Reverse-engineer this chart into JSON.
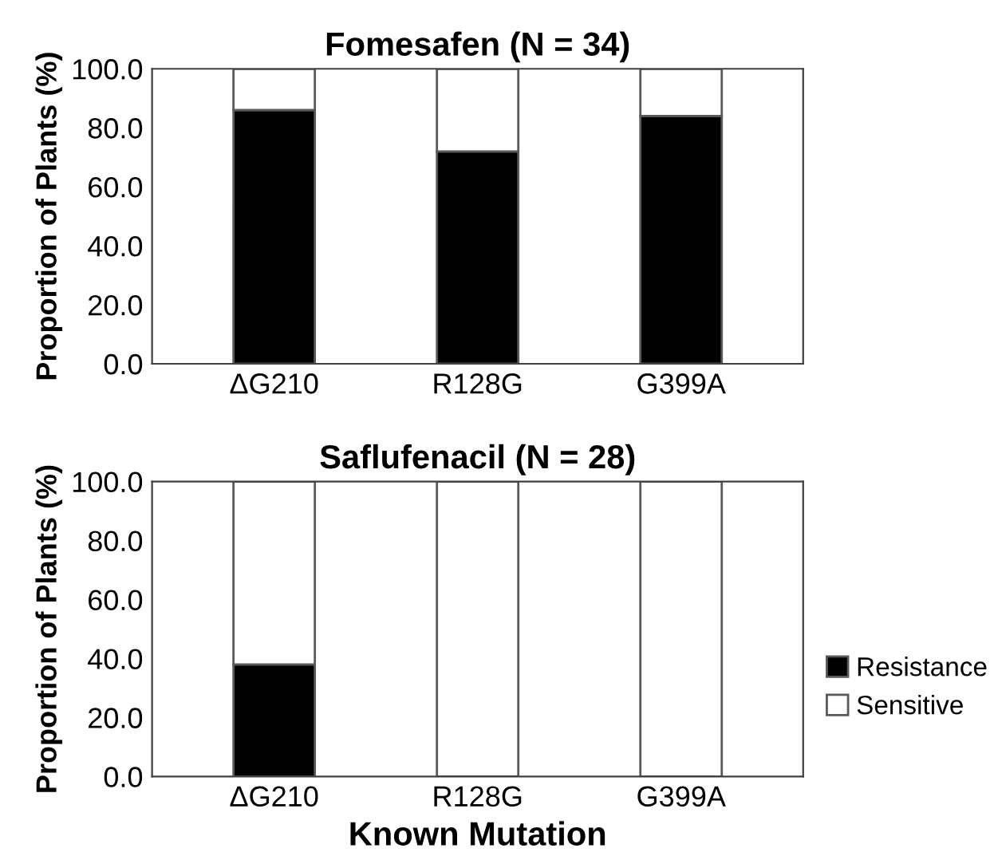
{
  "chart_data": [
    {
      "type": "bar",
      "title": "Fomesafen (N = 34)",
      "ylabel": "Proportion of Plants (%)",
      "categories": [
        "ΔG210",
        "R128G",
        "G399A"
      ],
      "stacked": true,
      "legend": false,
      "grid": false,
      "ylim": [
        0,
        100
      ],
      "yticks": [
        {
          "value": 0,
          "label": "0.0"
        },
        {
          "value": 20,
          "label": "20.0"
        },
        {
          "value": 40,
          "label": "40.0"
        },
        {
          "value": 60,
          "label": "60.0"
        },
        {
          "value": 80,
          "label": "80.0"
        },
        {
          "value": 100,
          "label": "100.0"
        }
      ],
      "series": [
        {
          "color": "#000000",
          "values": [
            86,
            72,
            84
          ]
        },
        {
          "color": "#ffffff",
          "values": [
            14,
            28,
            16
          ]
        }
      ]
    },
    {
      "type": "bar",
      "title": "Saflufenacil (N = 28)",
      "ylabel": "Proportion of Plants (%)",
      "xlabel": "Known Mutation",
      "categories": [
        "ΔG210",
        "R128G",
        "G399A"
      ],
      "stacked": true,
      "legend": "right",
      "grid": false,
      "ylim": [
        0,
        100
      ],
      "yticks": [
        {
          "value": 0,
          "label": "0.0"
        },
        {
          "value": 20,
          "label": "20.0"
        },
        {
          "value": 40,
          "label": "40.0"
        },
        {
          "value": 60,
          "label": "60.0"
        },
        {
          "value": 80,
          "label": "80.0"
        },
        {
          "value": 100,
          "label": "100.0"
        }
      ],
      "series": [
        {
          "name": "Resistance",
          "color": "#000000",
          "values": [
            38,
            0,
            0
          ]
        },
        {
          "name": "Sensitive",
          "color": "#ffffff",
          "values": [
            62,
            100,
            100
          ]
        }
      ]
    }
  ]
}
